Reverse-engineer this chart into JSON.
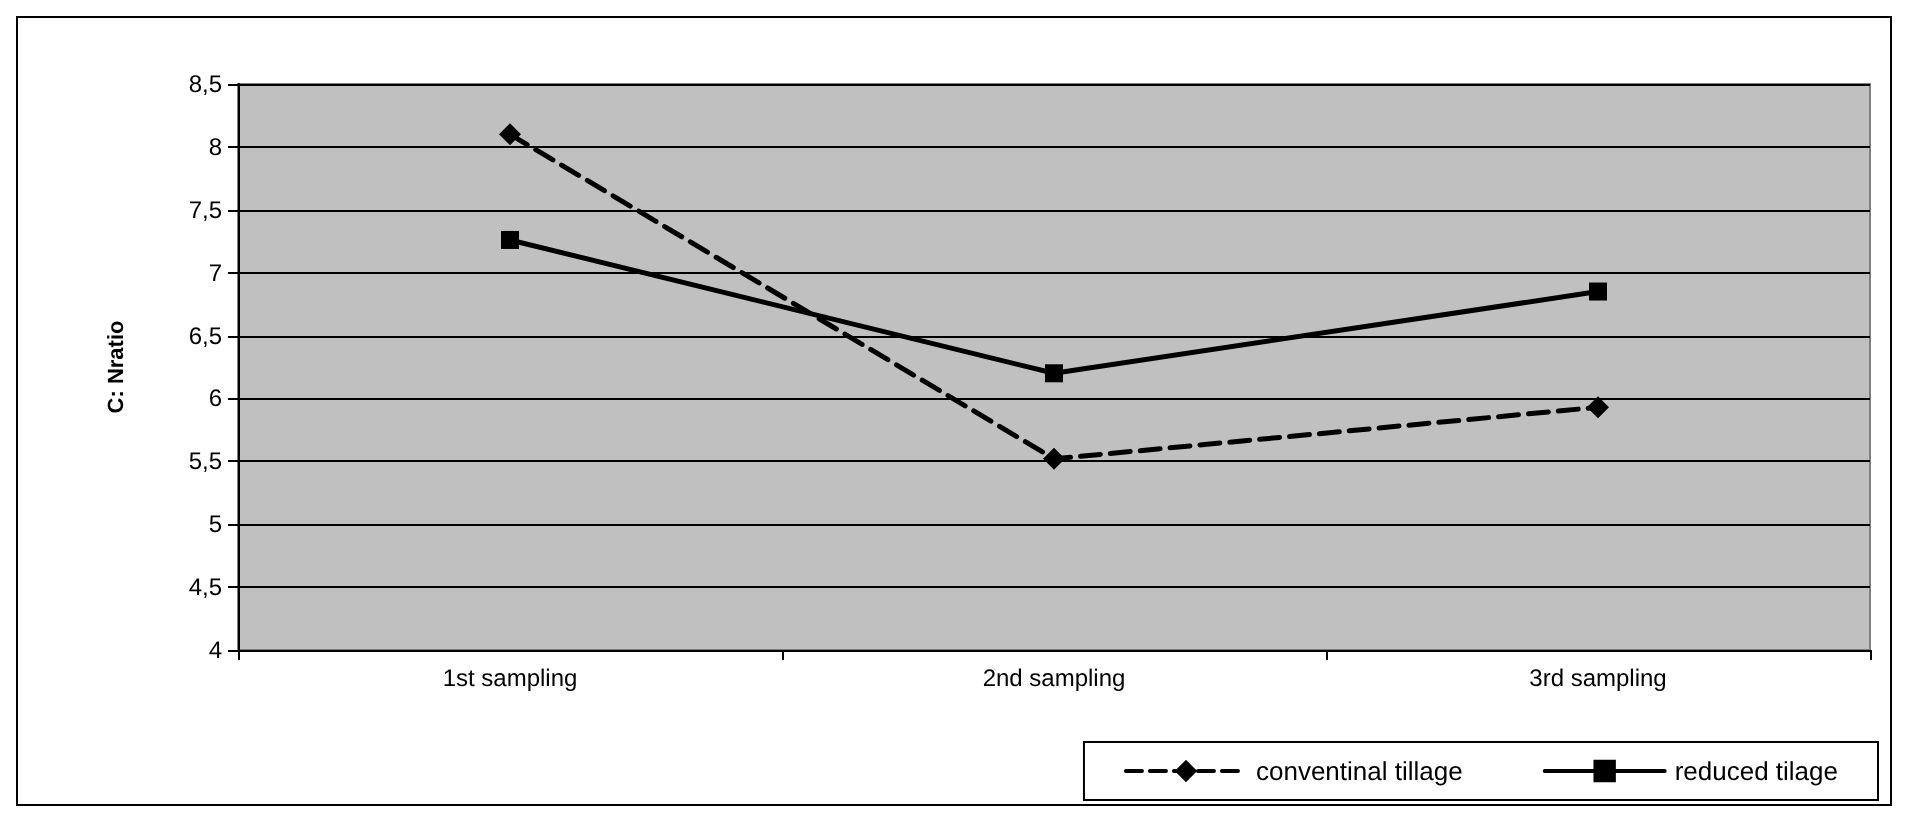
{
  "chart_data": {
    "type": "line",
    "ylabel": "C: Nratio",
    "categories": [
      "1st sampling",
      "2nd sampling",
      "3rd sampling"
    ],
    "series": [
      {
        "name": "conventinal tillage",
        "color": "#000000",
        "values": [
          8.1,
          5.52,
          5.93
        ],
        "marker": "diamond",
        "line_style": "dashed"
      },
      {
        "name": "reduced tilage",
        "color": "#000000",
        "values": [
          7.26,
          6.2,
          6.85
        ],
        "marker": "square",
        "line_style": "solid"
      }
    ],
    "ylim": [
      4,
      8.5
    ],
    "yticks": [
      {
        "value": 4,
        "label": "4"
      },
      {
        "value": 4.5,
        "label": "4,5"
      },
      {
        "value": 5,
        "label": "5"
      },
      {
        "value": 5.5,
        "label": "5,5"
      },
      {
        "value": 6,
        "label": "6"
      },
      {
        "value": 6.5,
        "label": "6,5"
      },
      {
        "value": 7,
        "label": "7"
      },
      {
        "value": 7.5,
        "label": "7,5"
      },
      {
        "value": 8,
        "label": "8"
      },
      {
        "value": 8.5,
        "label": "8,5"
      }
    ],
    "grid": "y",
    "legend": "bottom right"
  }
}
